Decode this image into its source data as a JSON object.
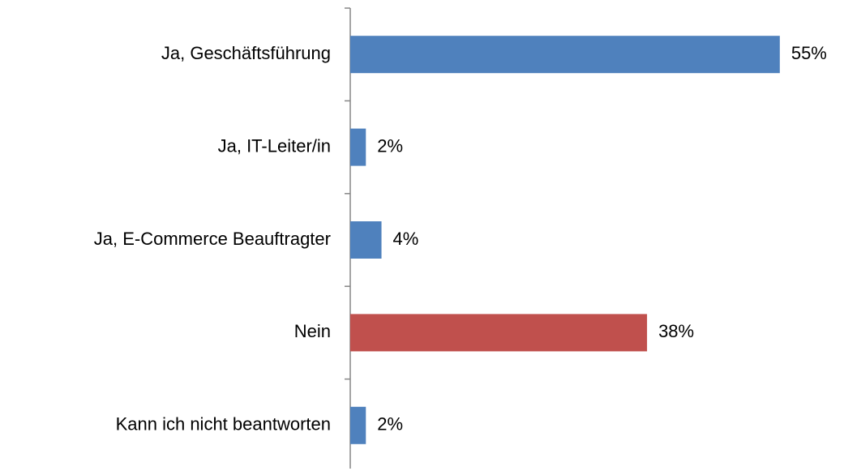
{
  "chart_data": {
    "type": "hbar",
    "categories": [
      "Ja, Geschäftsführung",
      "Ja, IT-Leiter/in",
      "Ja, E-Commerce Beauftragter",
      "Nein",
      "Kann ich nicht beantworten"
    ],
    "values": [
      55,
      2,
      4,
      38,
      2
    ],
    "value_labels": [
      "55%",
      "2%",
      "4%",
      "38%",
      "2%"
    ],
    "colors": [
      "#4f81bd",
      "#4f81bd",
      "#4f81bd",
      "#c0504d",
      "#4f81bd"
    ],
    "xlim": [
      0,
      60
    ]
  }
}
